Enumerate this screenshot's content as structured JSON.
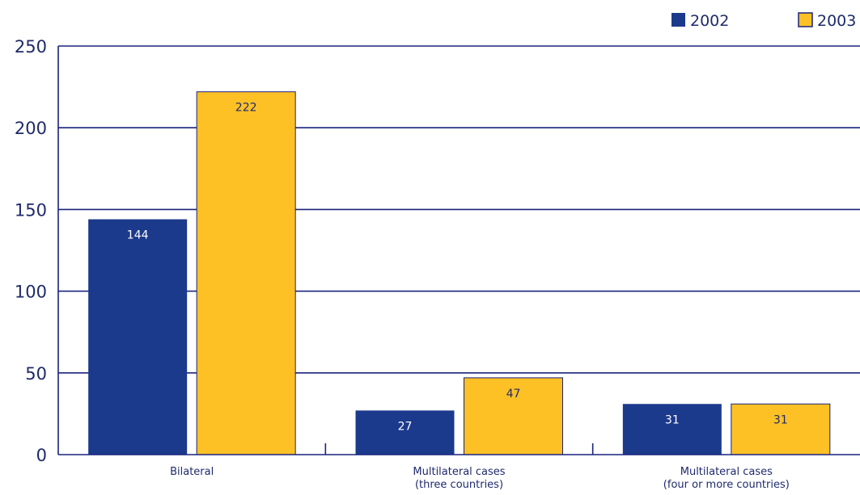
{
  "colors": {
    "axis": "#1a237e",
    "series_2002": "#1c3a8c",
    "series_2003": "#fdc125",
    "label_on_dark": "#ffffff",
    "label_on_light": "#1f2a6b"
  },
  "chart_data": {
    "type": "bar",
    "categories": [
      [
        "Bilateral"
      ],
      [
        "Multilateral cases",
        "(three countries)"
      ],
      [
        "Multilateral cases",
        "(four or more countries)"
      ]
    ],
    "series": [
      {
        "name": "2002",
        "values": [
          144,
          27,
          31
        ]
      },
      {
        "name": "2003",
        "values": [
          222,
          47,
          31
        ]
      }
    ],
    "ylim": [
      0,
      250
    ],
    "yticks": [
      0,
      50,
      100,
      150,
      200,
      250
    ],
    "grid": true,
    "legend": "top-right"
  }
}
